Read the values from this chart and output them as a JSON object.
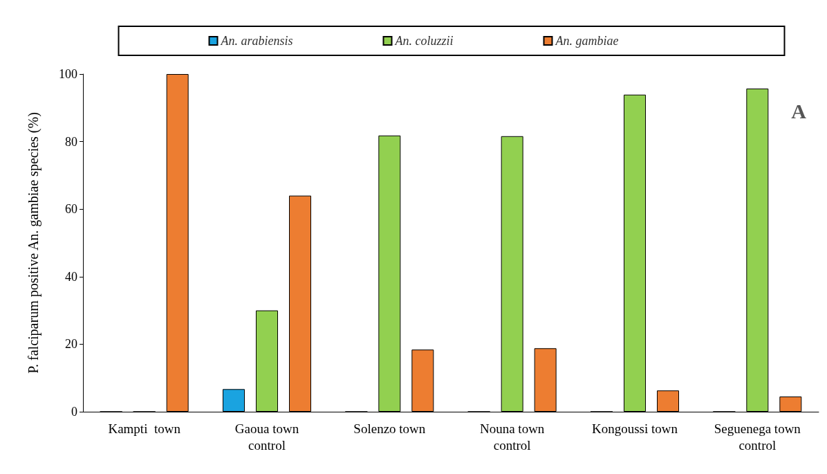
{
  "chart_data": {
    "type": "bar",
    "ylabel": "P. falciparum positive An. gambiae species (%)",
    "categories": [
      "Kampti  town",
      "Gaoua town\ncontrol",
      "Solenzo town",
      "Nouna town\ncontrol",
      "Kongoussi town",
      "Seguenega town\ncontrol"
    ],
    "series": [
      {
        "name": "An. arabiensis",
        "color": "#1aa3e0",
        "values": [
          0,
          6.7,
          0,
          0,
          0,
          0
        ]
      },
      {
        "name": "An. coluzzii",
        "color": "#92d050",
        "values": [
          0,
          30,
          81.8,
          81.6,
          93.9,
          95.7
        ]
      },
      {
        "name": "An. gambiae",
        "color": "#ed7d31",
        "values": [
          100,
          64,
          18.4,
          18.8,
          6.3,
          4.5
        ]
      }
    ],
    "ylim": [
      0,
      100
    ],
    "yticks": [
      0,
      20,
      40,
      60,
      80,
      100
    ],
    "grid": false,
    "legend": "top",
    "annotations": [
      "A"
    ]
  }
}
